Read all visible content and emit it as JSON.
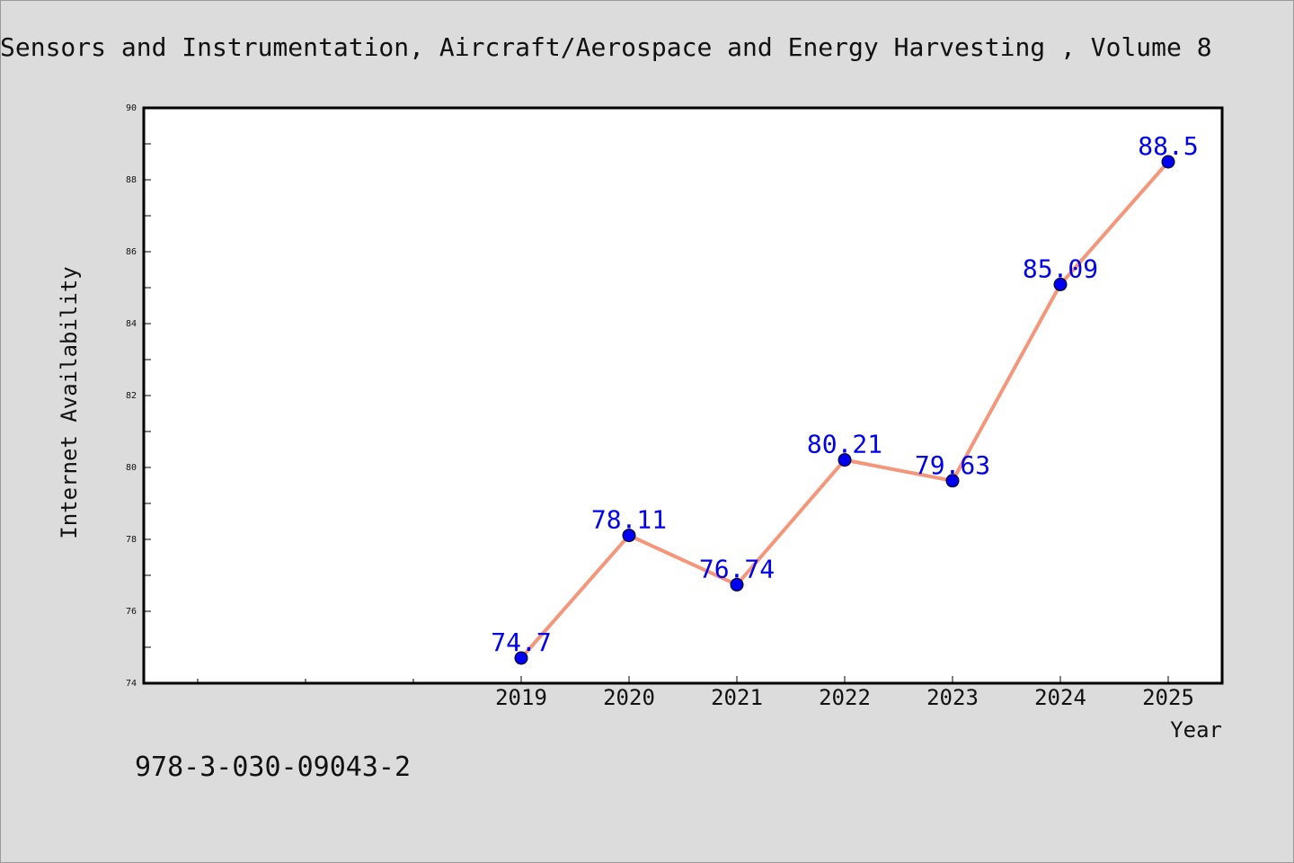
{
  "title": "Sensors and Instrumentation, Aircraft/Aerospace and Energy Harvesting , Volume 8",
  "footer_text": "978-3-030-09043-2",
  "colors": {
    "background": "#dcdcdc",
    "plot_background": "#ffffff",
    "line": "#f5967a",
    "marker": "#0000ee",
    "data_label": "#0000ee"
  },
  "chart_data": {
    "type": "line",
    "title": "Sensors and Instrumentation, Aircraft/Aerospace and Energy Harvesting , Volume 8",
    "xlabel": "Year",
    "ylabel": "Internet Availability",
    "x": [
      "2019",
      "2020",
      "2021",
      "2022",
      "2023",
      "2024",
      "2025"
    ],
    "series": [
      {
        "values": [
          74.7,
          78.11,
          76.74,
          80.21,
          79.63,
          85.09,
          88.5
        ]
      }
    ],
    "data_labels": [
      "74.7",
      "78.11",
      "76.74",
      "80.21",
      "79.63",
      "85.09",
      "88.5"
    ],
    "ylim": [
      74,
      90
    ],
    "yticks": [
      "74",
      "76",
      "78",
      "80",
      "82",
      "84",
      "86",
      "88",
      "90"
    ],
    "grid": false,
    "legend": "none"
  }
}
